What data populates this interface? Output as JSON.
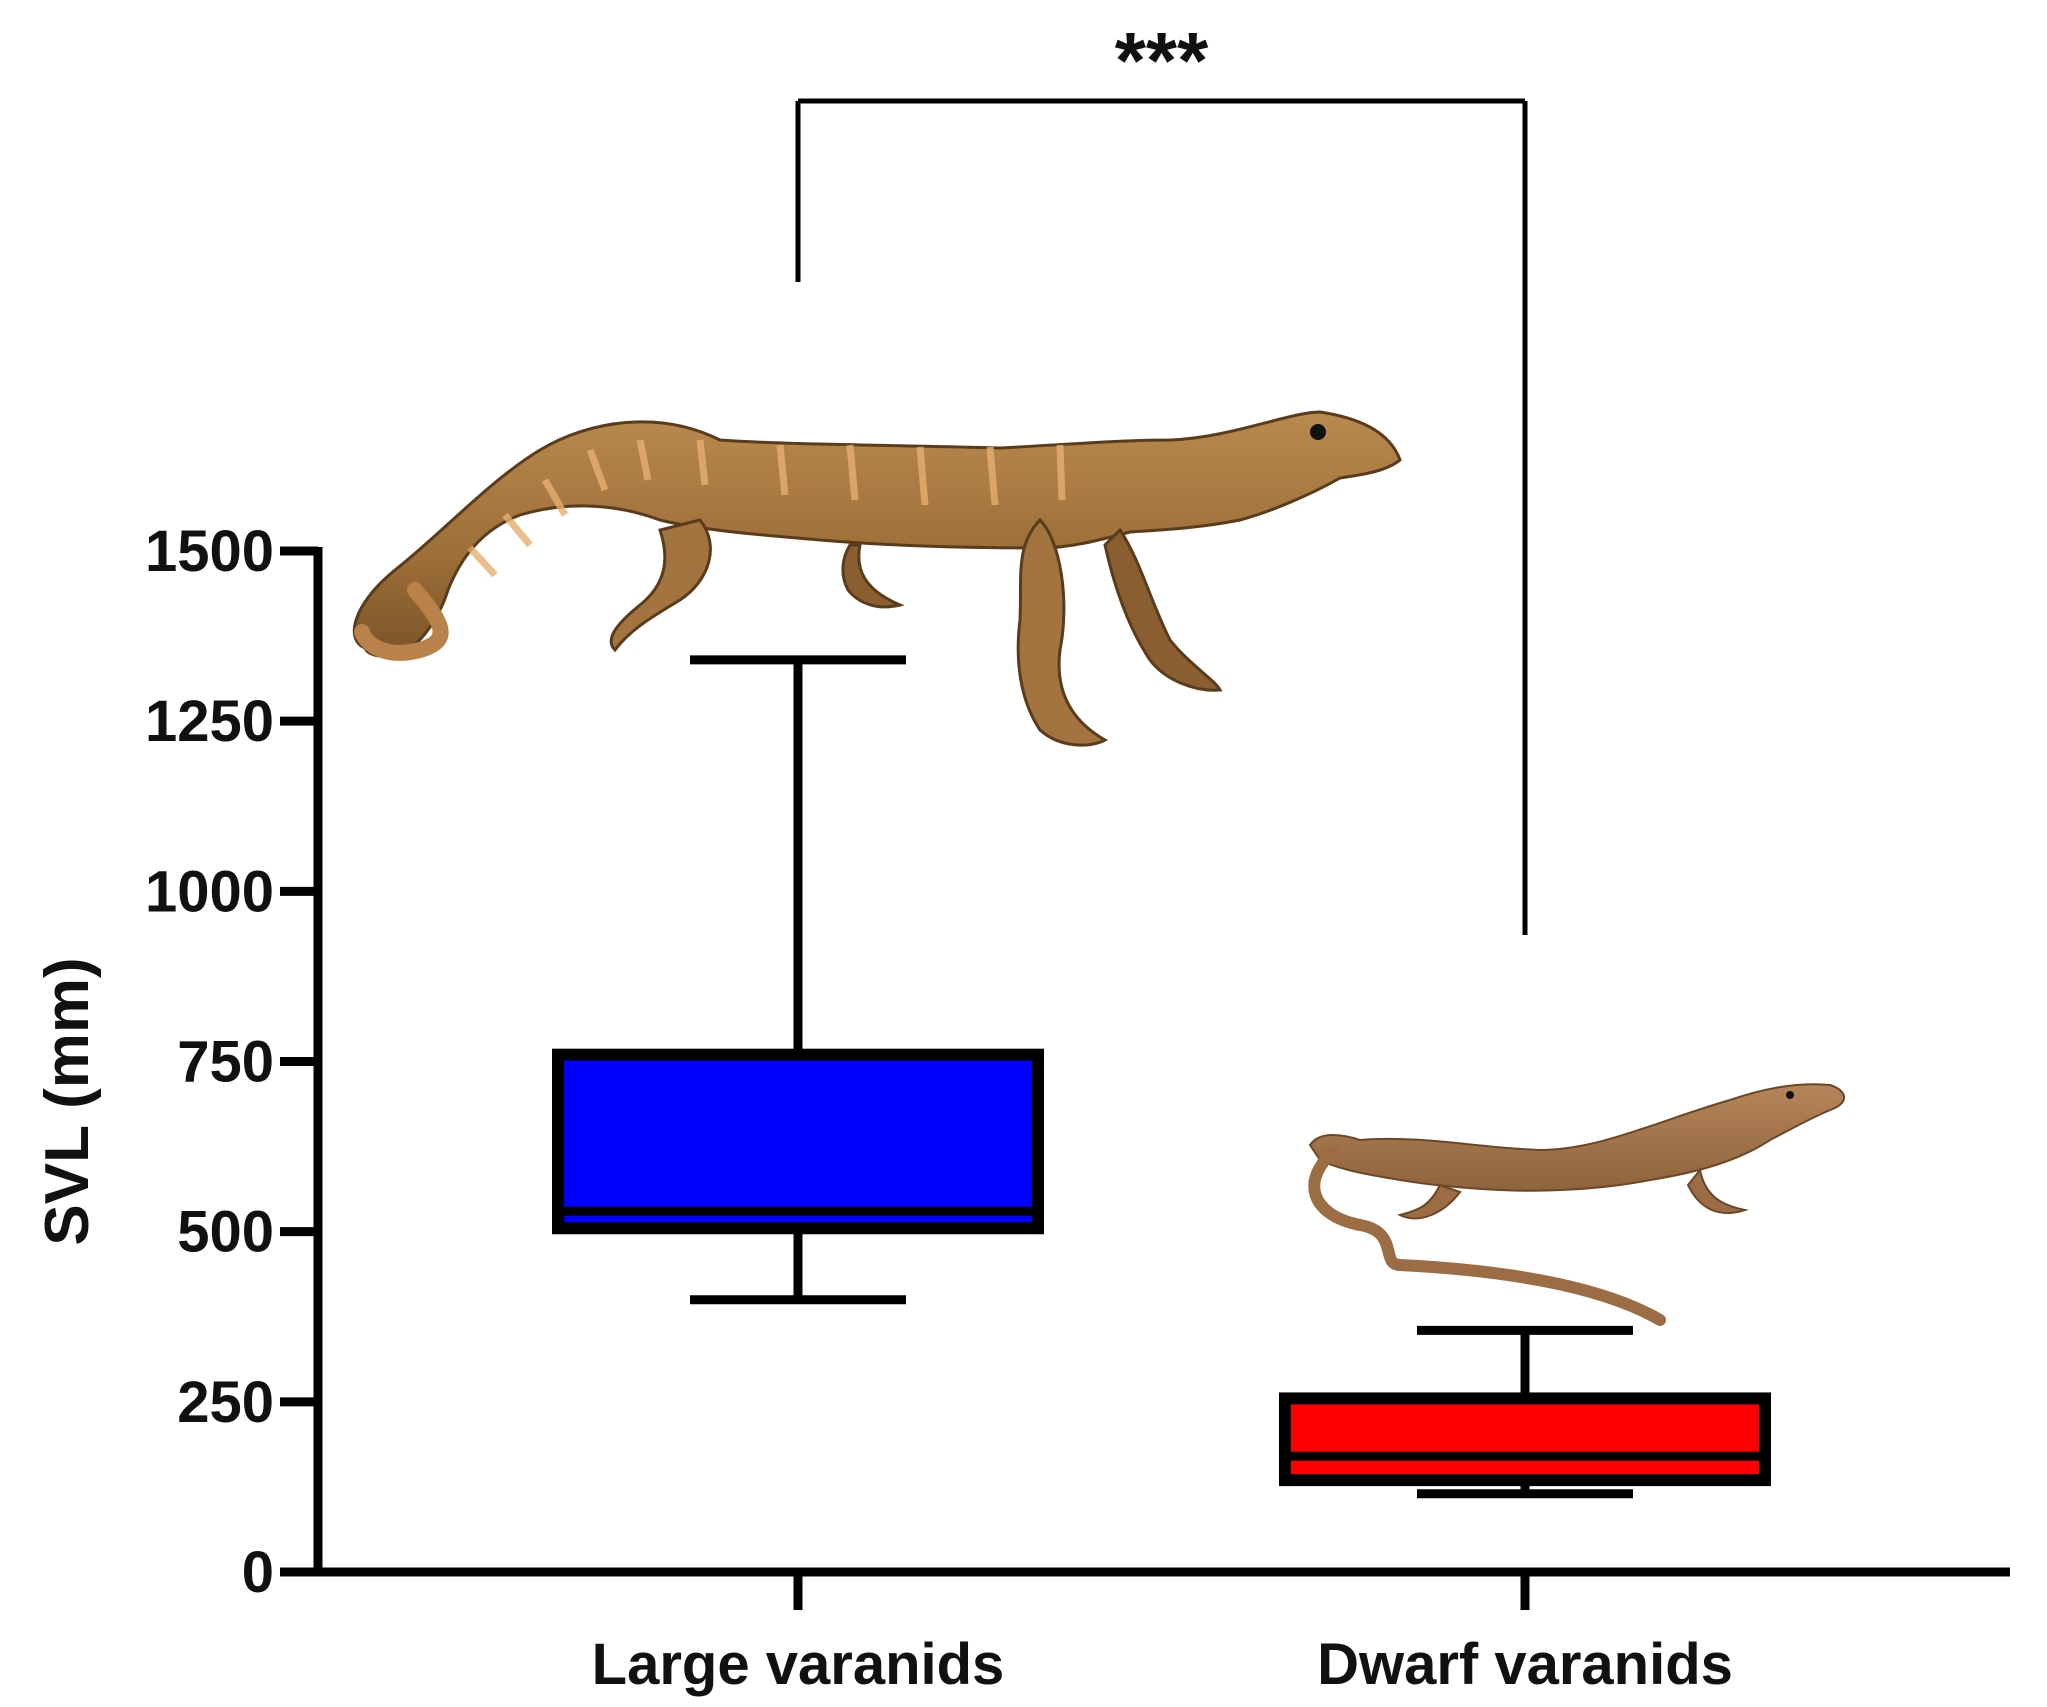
{
  "chart_data": {
    "type": "boxplot",
    "ylabel": "SVL (mm)",
    "ylim": [
      0,
      1500
    ],
    "yticks": [
      "0",
      "250",
      "500",
      "750",
      "1000",
      "1250",
      "1500"
    ],
    "categories": [
      "Large varanids",
      "Dwarf varanids"
    ],
    "boxes": [
      {
        "category": "Large varanids",
        "min": 400,
        "q1": 505,
        "median": 530,
        "q3": 760,
        "max": 1340,
        "color": "#0000ff"
      },
      {
        "category": "Dwarf varanids",
        "min": 115,
        "q1": 135,
        "median": 170,
        "q3": 255,
        "max": 355,
        "color": "#ff0000"
      }
    ],
    "significance": {
      "label": "***",
      "between": [
        "Large varanids",
        "Dwarf varanids"
      ]
    },
    "illustrations": [
      {
        "name": "large-varanid-lizard",
        "category": "Large varanids"
      },
      {
        "name": "dwarf-varanid-lizard",
        "category": "Dwarf varanids"
      }
    ]
  }
}
